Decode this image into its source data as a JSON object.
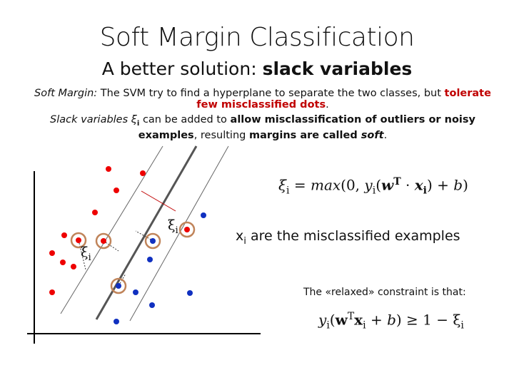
{
  "title": "Soft Margin Classification",
  "subtitle": [
    {
      "text": "A better solution: ",
      "style": "plain"
    },
    {
      "text": "slack variables",
      "style": "bold"
    }
  ],
  "paragraphs": [
    [
      {
        "text": "Soft Margin:",
        "style": "italic"
      },
      {
        "text": " The SVM try to find a hyperplane to separate the two classes, but ",
        "style": "plain"
      },
      {
        "text": "tolerate few misclassified dots",
        "style": "red-bold"
      },
      {
        "text": ".",
        "style": "plain"
      }
    ],
    [
      {
        "text": "Slack variables ξ",
        "style": "italic"
      },
      {
        "text": "i",
        "style": "sub-bold"
      },
      {
        "text": " can be added to ",
        "style": "plain"
      },
      {
        "text": "allow misclassification of outliers or noisy examples",
        "style": "bold"
      },
      {
        "text": ", resulting ",
        "style": "plain"
      },
      {
        "text": "margins are called ",
        "style": "bold"
      },
      {
        "text": "soft",
        "style": "bold-italic"
      },
      {
        "text": ".",
        "style": "plain"
      }
    ]
  ],
  "diagram_labels": [
    [
      {
        "text": "ξ",
        "style": "plain"
      },
      {
        "text": "i",
        "style": "sub"
      }
    ],
    [
      {
        "text": "ξ",
        "style": "plain"
      },
      {
        "text": "i",
        "style": "sub"
      }
    ]
  ],
  "slack_equation": [
    {
      "text": "ξ",
      "style": "italic"
    },
    {
      "text": "i",
      "style": "sub"
    },
    {
      "text": " = ",
      "style": "plain"
    },
    {
      "text": "max",
      "style": "italic"
    },
    {
      "text": "(0, ",
      "style": "plain"
    },
    {
      "text": "y",
      "style": "italic"
    },
    {
      "text": "i",
      "style": "sub"
    },
    {
      "text": "(",
      "style": "plain"
    },
    {
      "text": "w",
      "style": "bold-italic"
    },
    {
      "text": "T",
      "style": "sup-bold"
    },
    {
      "text": " · ",
      "style": "plain"
    },
    {
      "text": "x",
      "style": "bold-italic"
    },
    {
      "text": "i",
      "style": "sub-bold"
    },
    {
      "text": ") + ",
      "style": "plain"
    },
    {
      "text": "b",
      "style": "italic"
    },
    {
      "text": ")",
      "style": "plain"
    }
  ],
  "misclassified_note": [
    {
      "text": "x",
      "style": "plain"
    },
    {
      "text": "i",
      "style": "sub"
    },
    {
      "text": " are the misclassified examples",
      "style": "plain"
    }
  ],
  "constraint_intro": "The «relaxed» constraint is that:",
  "constraint_equation": [
    {
      "text": "y",
      "style": "italic"
    },
    {
      "text": "i",
      "style": "sub"
    },
    {
      "text": "(",
      "style": "plain"
    },
    {
      "text": "w",
      "style": "bold"
    },
    {
      "text": "T",
      "style": "sup"
    },
    {
      "text": "x",
      "style": "bold"
    },
    {
      "text": "i",
      "style": "sub"
    },
    {
      "text": " + ",
      "style": "plain"
    },
    {
      "text": "b",
      "style": "italic"
    },
    {
      "text": ") ≥ 1 − ξ",
      "style": "plain"
    },
    {
      "text": "i",
      "style": "sub"
    }
  ]
}
